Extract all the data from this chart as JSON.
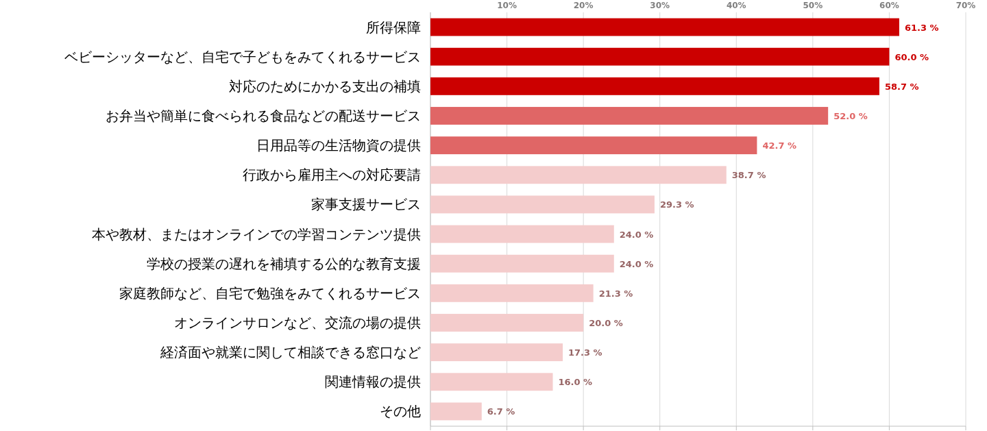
{
  "chart_data": {
    "type": "bar",
    "orientation": "horizontal",
    "categories": [
      "所得保障",
      "ベビーシッターなど、自宅で子どもをみてくれるサービス",
      "対応のためにかかる支出の補填",
      "お弁当や簡単に食べられる食品などの配送サービス",
      "日用品等の生活物資の提供",
      "行政から雇用主への対応要請",
      "家事支援サービス",
      "本や教材、またはオンラインでの学習コンテンツ提供",
      "学校の授業の遅れを補填する公的な教育支援",
      "家庭教師など、自宅で勉強をみてくれるサービス",
      "オンラインサロンなど、交流の場の提供",
      "経済面や就業に関して相談できる窓口など",
      "関連情報の提供",
      "その他"
    ],
    "values": [
      61.3,
      60.0,
      58.7,
      52.0,
      42.7,
      38.7,
      29.3,
      24.0,
      24.0,
      21.3,
      20.0,
      17.3,
      16.0,
      6.7
    ],
    "value_labels": [
      "61.3 %",
      "60.0 %",
      "58.7 %",
      "52.0 %",
      "42.7 %",
      "38.7 %",
      "29.3 %",
      "24.0 %",
      "24.0 %",
      "21.3 %",
      "20.0 %",
      "17.3 %",
      "16.0 %",
      "6.7 %"
    ],
    "colors": [
      "#cc0000",
      "#cc0000",
      "#cc0000",
      "#e06666",
      "#e06666",
      "#f4cccc",
      "#f4cccc",
      "#f4cccc",
      "#f4cccc",
      "#f4cccc",
      "#f4cccc",
      "#f4cccc",
      "#f4cccc",
      "#f4cccc"
    ],
    "xlim": [
      0,
      70
    ],
    "xticks": [
      {
        "value": 0,
        "label": null
      },
      {
        "value": 10,
        "label": "10%"
      },
      {
        "value": 20,
        "label": "20%"
      },
      {
        "value": 30,
        "label": "30%"
      },
      {
        "value": 40,
        "label": "40%"
      },
      {
        "value": 50,
        "label": "50%"
      },
      {
        "value": 60,
        "label": "60%"
      },
      {
        "value": 70,
        "label": "70%"
      }
    ],
    "grid": "x"
  }
}
